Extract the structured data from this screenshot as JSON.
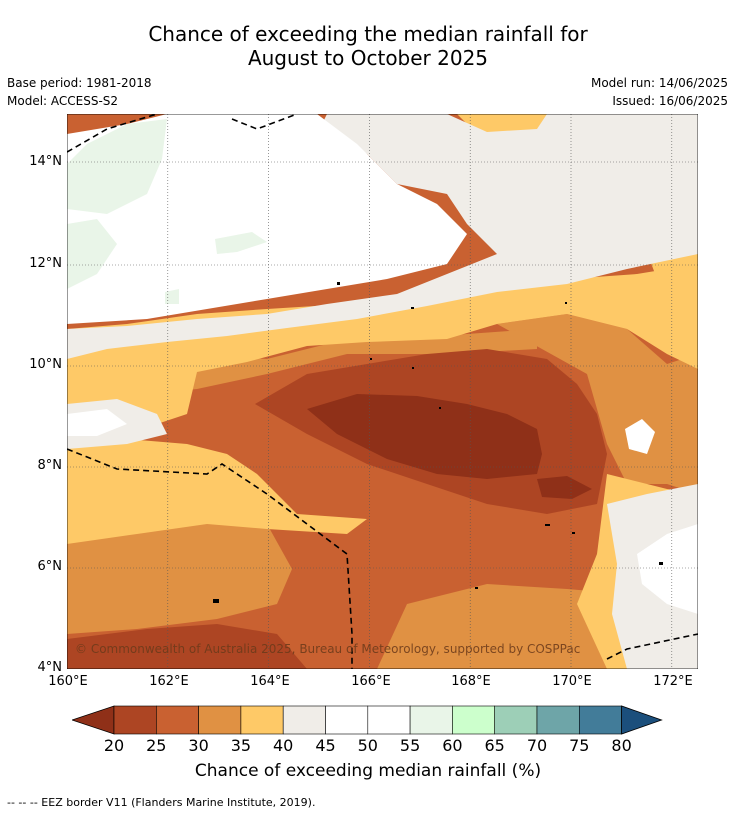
{
  "title_line1": "Chance of exceeding the median rainfall for",
  "title_line2": "August to October 2025",
  "base_period": "Base period: 1981-2018",
  "model": "Model: ACCESS-S2",
  "model_run": "Model run: 14/06/2025",
  "issued": "Issued: 16/06/2025",
  "copyright": "© Commonwealth of Australia 2025, Bureau of Meteorology, supported by COSPPac",
  "x_ticks": [
    "160°E",
    "162°E",
    "164°E",
    "166°E",
    "168°E",
    "170°E",
    "172°E"
  ],
  "y_ticks": [
    "14°N",
    "12°N",
    "10°N",
    "8°N",
    "6°N",
    "4°N"
  ],
  "colorbar": {
    "labels": [
      "20",
      "25",
      "30",
      "35",
      "40",
      "45",
      "50",
      "55",
      "60",
      "65",
      "70",
      "75",
      "80"
    ],
    "colors": [
      "#8f3018",
      "#ad4523",
      "#c96131",
      "#e09143",
      "#fec967",
      "#f0ede8",
      "#ffffff",
      "#ffffff",
      "#e9f5e8",
      "#ccffcc",
      "#9dcfb7",
      "#6ea5a8",
      "#427c99",
      "#1b4f7c"
    ],
    "title": "Chance of exceeding median rainfall (%)"
  },
  "footer": "--  --  -- EEZ border V11 (Flanders Marine Institute, 2019)."
}
